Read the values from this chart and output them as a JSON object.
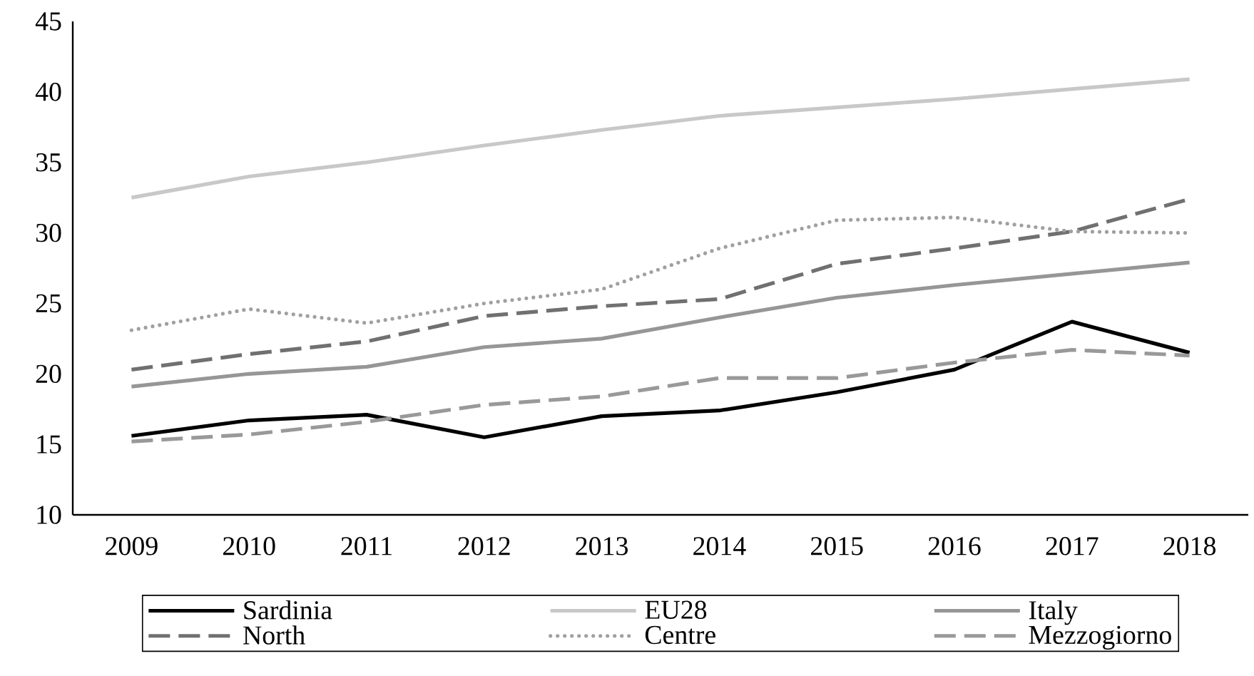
{
  "chart_data": {
    "type": "line",
    "categories": [
      "2009",
      "2010",
      "2011",
      "2012",
      "2013",
      "2014",
      "2015",
      "2016",
      "2017",
      "2018"
    ],
    "series": [
      {
        "name": "Sardinia",
        "color": "#000000",
        "line_style": "solid",
        "values": [
          15.6,
          16.7,
          17.1,
          15.5,
          17.0,
          17.4,
          18.7,
          20.3,
          23.7,
          21.5
        ]
      },
      {
        "name": "EU28",
        "color": "#c8c8c8",
        "line_style": "solid",
        "values": [
          32.5,
          34.0,
          35.0,
          36.2,
          37.3,
          38.3,
          38.9,
          39.5,
          40.2,
          40.9
        ]
      },
      {
        "name": "Italy",
        "color": "#969696",
        "line_style": "solid",
        "values": [
          19.1,
          20.0,
          20.5,
          21.9,
          22.5,
          24.0,
          25.4,
          26.3,
          27.1,
          27.9
        ]
      },
      {
        "name": "North",
        "color": "#707070",
        "line_style": "dashed",
        "values": [
          20.3,
          21.4,
          22.3,
          24.1,
          24.8,
          25.3,
          27.8,
          28.9,
          30.1,
          32.4
        ]
      },
      {
        "name": "Centre",
        "color": "#a0a0a0",
        "line_style": "dotted",
        "values": [
          23.1,
          24.6,
          23.6,
          25.0,
          26.0,
          28.9,
          30.9,
          31.1,
          30.1,
          30.0
        ]
      },
      {
        "name": "Mezzogiorno",
        "color": "#999999",
        "line_style": "dashed",
        "values": [
          15.2,
          15.7,
          16.6,
          17.8,
          18.4,
          19.7,
          19.7,
          20.8,
          21.7,
          21.3
        ]
      }
    ],
    "ylim": [
      10,
      45
    ],
    "yticks": [
      10,
      15,
      20,
      25,
      30,
      35,
      40,
      45
    ],
    "grid": false,
    "legend": "bottom",
    "marker": "none"
  }
}
